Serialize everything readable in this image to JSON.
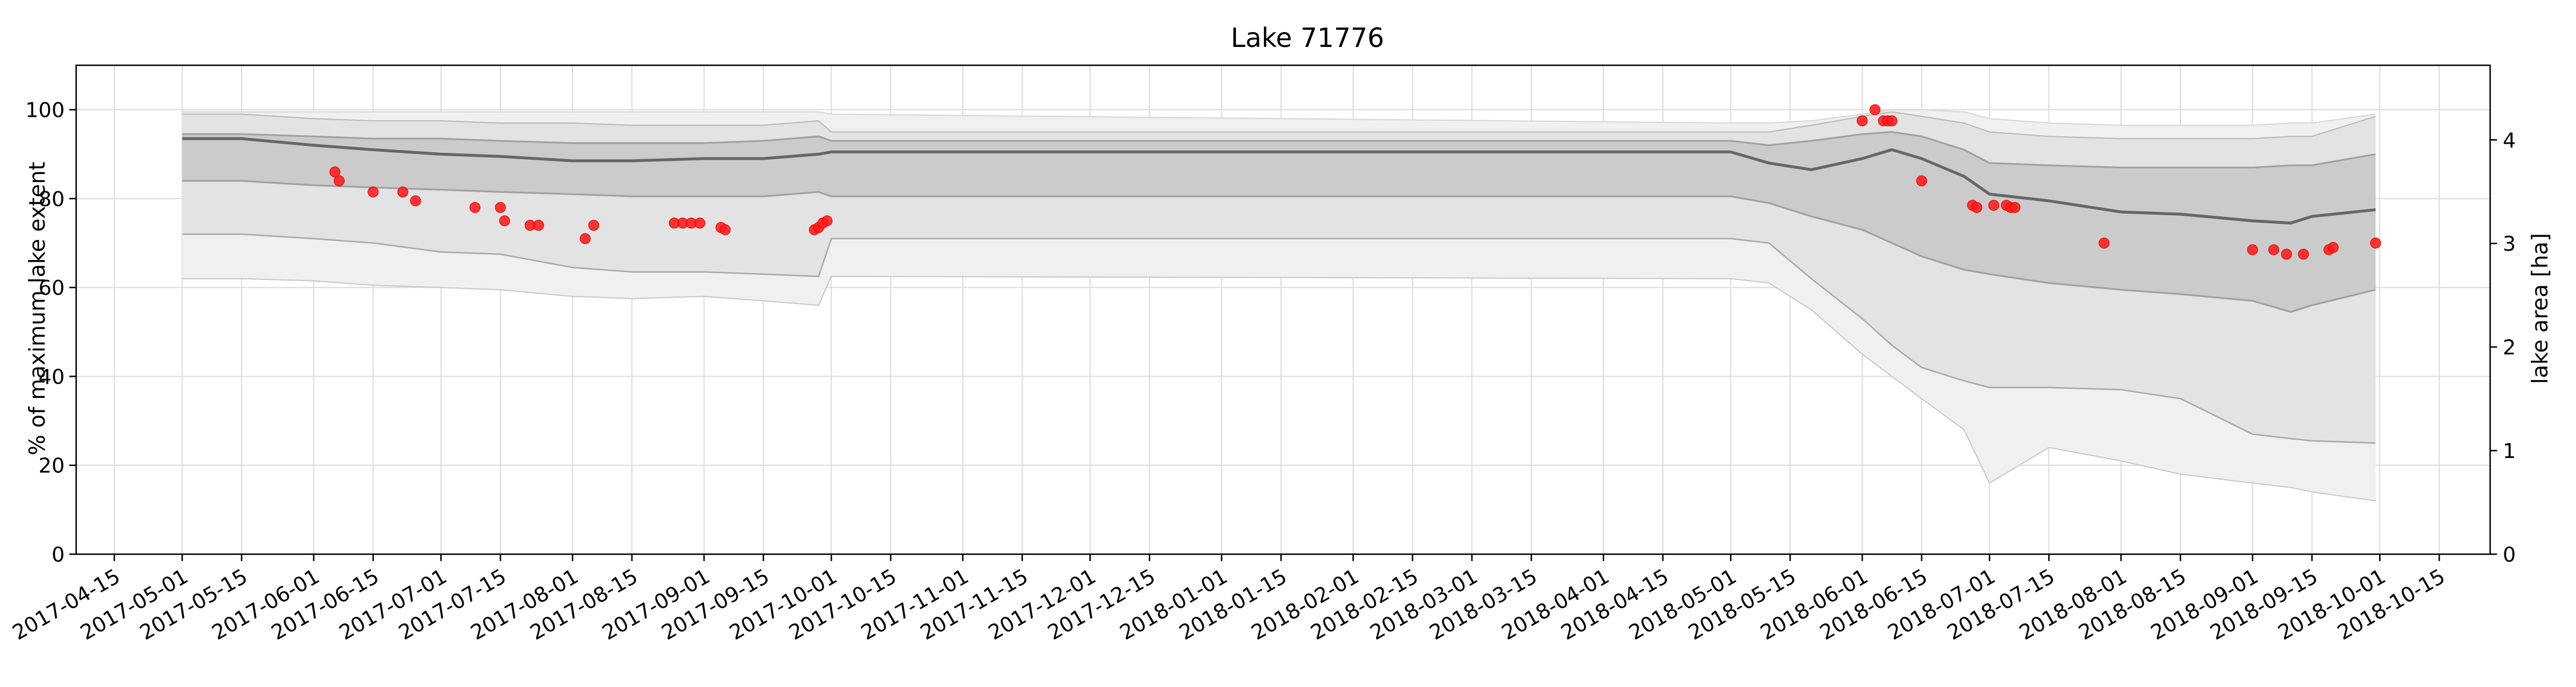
{
  "chart_data": {
    "type": "line",
    "title": "Lake 71776",
    "ylabel": "% of maximum lake extent",
    "ylabel_right": "lake area [ha]",
    "xlabel": "",
    "xlim": [
      "2017-04-06",
      "2018-10-27"
    ],
    "ylim": [
      0,
      110
    ],
    "ylim_right": [
      0,
      4.72
    ],
    "yticks": [
      "0",
      "20",
      "40",
      "60",
      "80",
      "100"
    ],
    "yticks_right": [
      "0",
      "1",
      "2",
      "3",
      "4"
    ],
    "xticks": [
      "2017-04-15",
      "2017-05-01",
      "2017-05-15",
      "2017-06-01",
      "2017-06-15",
      "2017-07-01",
      "2017-07-15",
      "2017-08-01",
      "2017-08-15",
      "2017-09-01",
      "2017-09-15",
      "2017-10-01",
      "2017-10-15",
      "2017-11-01",
      "2017-11-15",
      "2017-12-01",
      "2017-12-15",
      "2018-01-01",
      "2018-01-15",
      "2018-02-01",
      "2018-02-15",
      "2018-03-01",
      "2018-03-15",
      "2018-04-01",
      "2018-04-15",
      "2018-05-01",
      "2018-05-15",
      "2018-06-01",
      "2018-06-15",
      "2018-07-01",
      "2018-07-15",
      "2018-08-01",
      "2018-08-15",
      "2018-09-01",
      "2018-09-15",
      "2018-10-01",
      "2018-10-15"
    ],
    "grid": true,
    "colors": {
      "outer_band": "#f0f0f0",
      "mid_band": "#e3e3e3",
      "inner_band": "#cbcbcb",
      "band_edge": "#a0a0a0",
      "median_line": "#666666",
      "points": "#ff1a1a",
      "grid": "#dddddd"
    },
    "bands": {
      "x": [
        "2017-05-01",
        "2017-05-15",
        "2017-06-01",
        "2017-06-15",
        "2017-07-01",
        "2017-07-15",
        "2017-08-01",
        "2017-08-15",
        "2017-09-01",
        "2017-09-15",
        "2017-09-28",
        "2017-10-01",
        "2018-05-01",
        "2018-05-10",
        "2018-05-20",
        "2018-06-01",
        "2018-06-08",
        "2018-06-15",
        "2018-06-25",
        "2018-07-01",
        "2018-07-15",
        "2018-08-01",
        "2018-08-15",
        "2018-09-01",
        "2018-09-10",
        "2018-09-15",
        "2018-09-30"
      ],
      "outer_upper": [
        99.5,
        99.5,
        99.5,
        99.5,
        99.5,
        99.5,
        99.5,
        99.5,
        99.5,
        99.5,
        99.5,
        99.0,
        97.0,
        97.0,
        97.5,
        99.0,
        100.0,
        100.0,
        99.5,
        98.0,
        97.0,
        96.5,
        96.5,
        96.5,
        97.0,
        97.0,
        99.0
      ],
      "mid_upper": [
        99.0,
        99.0,
        98.0,
        97.5,
        97.5,
        97.0,
        97.0,
        96.5,
        96.5,
        96.5,
        97.5,
        95.0,
        95.0,
        95.0,
        96.5,
        98.5,
        99.5,
        98.5,
        97.0,
        95.0,
        94.0,
        93.5,
        93.5,
        93.5,
        94.0,
        94.0,
        98.5
      ],
      "inner_upper": [
        94.5,
        94.5,
        94.0,
        93.5,
        93.5,
        93.0,
        92.5,
        92.5,
        92.5,
        93.0,
        94.0,
        93.0,
        93.0,
        92.0,
        93.0,
        94.5,
        95.0,
        94.0,
        91.0,
        88.0,
        87.5,
        87.0,
        87.0,
        87.0,
        87.5,
        87.5,
        90.0
      ],
      "median": [
        93.5,
        93.5,
        92.0,
        91.0,
        90.0,
        89.5,
        88.5,
        88.5,
        89.0,
        89.0,
        90.0,
        90.5,
        90.5,
        88.0,
        86.5,
        89.0,
        91.0,
        89.0,
        85.0,
        81.0,
        79.5,
        77.0,
        76.5,
        75.0,
        74.5,
        76.0,
        77.5
      ],
      "inner_lower": [
        84.0,
        84.0,
        83.0,
        82.5,
        82.0,
        81.5,
        81.0,
        80.5,
        80.5,
        80.5,
        81.5,
        80.5,
        80.5,
        79.0,
        76.0,
        73.0,
        70.0,
        67.0,
        64.0,
        63.0,
        61.0,
        59.5,
        58.5,
        57.0,
        54.5,
        56.0,
        59.5
      ],
      "mid_lower": [
        72.0,
        72.0,
        71.0,
        70.0,
        68.0,
        67.5,
        64.5,
        63.5,
        63.5,
        63.0,
        62.5,
        71.0,
        71.0,
        70.0,
        62.0,
        53.0,
        47.0,
        42.0,
        39.0,
        37.5,
        37.5,
        37.0,
        35.0,
        27.0,
        26.0,
        25.5,
        25.0
      ],
      "outer_lower": [
        62.0,
        62.0,
        61.5,
        60.5,
        60.0,
        59.5,
        58.0,
        57.5,
        58.0,
        57.0,
        56.0,
        62.5,
        62.0,
        61.0,
        55.0,
        45.0,
        40.0,
        35.0,
        28.0,
        16.0,
        24.0,
        21.0,
        18.0,
        16.0,
        15.0,
        14.0,
        12.0
      ]
    },
    "observations": {
      "x": [
        "2017-06-06",
        "2017-06-07",
        "2017-06-15",
        "2017-06-22",
        "2017-06-25",
        "2017-07-09",
        "2017-07-15",
        "2017-07-16",
        "2017-07-22",
        "2017-07-24",
        "2017-08-04",
        "2017-08-06",
        "2017-08-25",
        "2017-08-27",
        "2017-08-29",
        "2017-08-31",
        "2017-09-05",
        "2017-09-06",
        "2017-09-27",
        "2017-09-28",
        "2017-09-29",
        "2017-09-30",
        "2018-06-01",
        "2018-06-04",
        "2018-06-06",
        "2018-06-07",
        "2018-06-08",
        "2018-06-15",
        "2018-06-27",
        "2018-06-28",
        "2018-07-02",
        "2018-07-05",
        "2018-07-06",
        "2018-07-07",
        "2018-07-28",
        "2018-09-01",
        "2018-09-06",
        "2018-09-09",
        "2018-09-13",
        "2018-09-19",
        "2018-09-20",
        "2018-09-30"
      ],
      "y": [
        86.0,
        84.0,
        81.5,
        81.5,
        79.5,
        78.0,
        78.0,
        75.0,
        74.0,
        74.0,
        71.0,
        74.0,
        74.5,
        74.5,
        74.5,
        74.5,
        73.5,
        73.0,
        73.0,
        73.5,
        74.5,
        75.0,
        97.5,
        100.0,
        97.5,
        97.5,
        97.5,
        84.0,
        78.5,
        78.0,
        78.5,
        78.5,
        78.0,
        78.0,
        70.0,
        68.5,
        68.5,
        67.5,
        67.5,
        68.5,
        69.0,
        70.0
      ]
    }
  }
}
